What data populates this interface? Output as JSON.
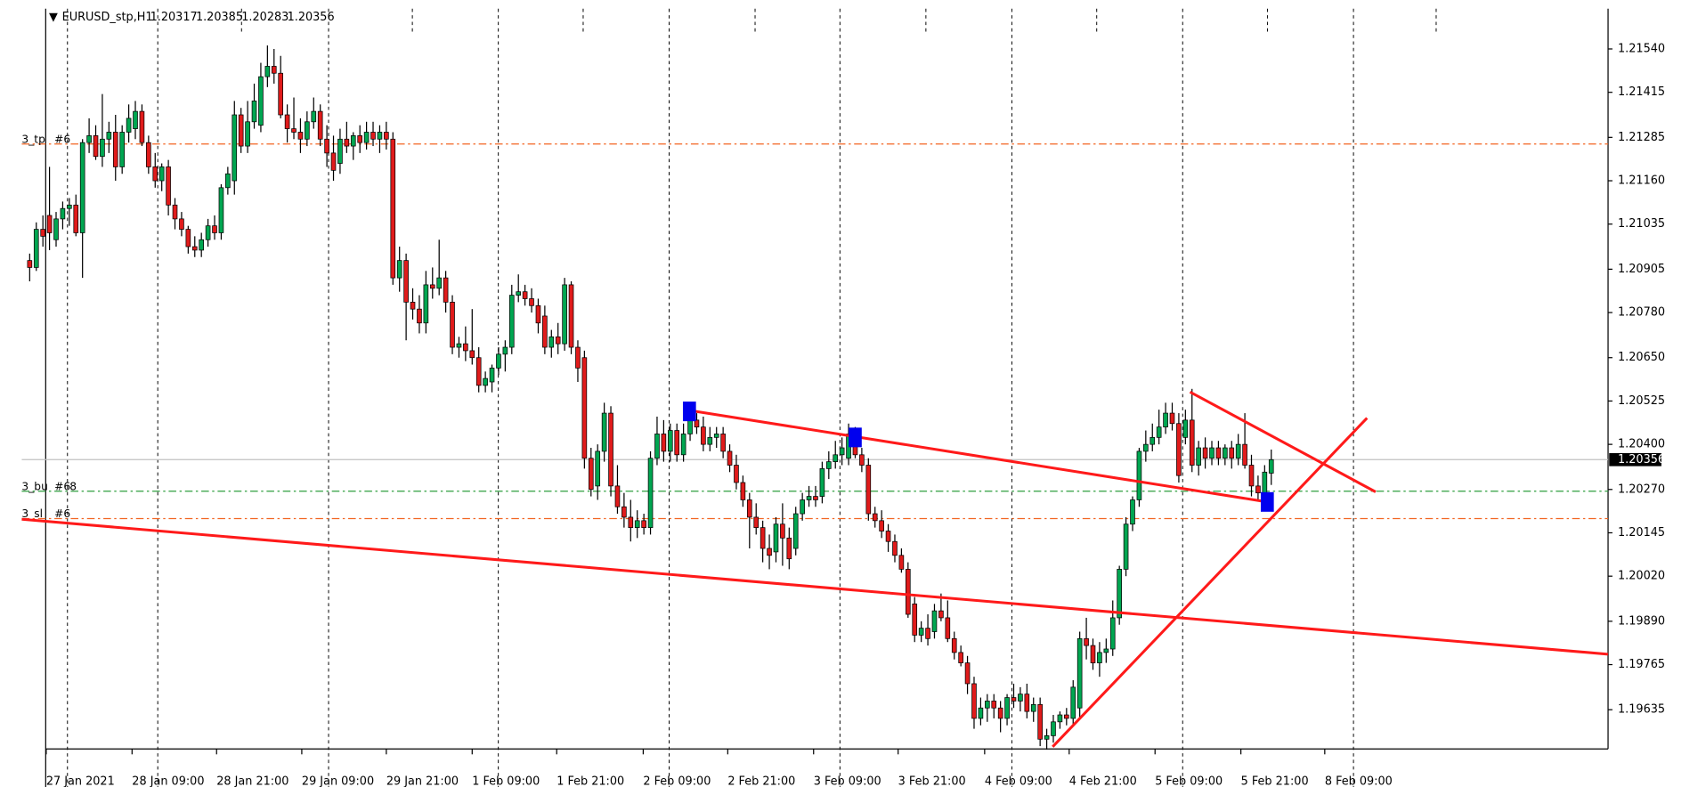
{
  "chart_data": {
    "type": "candlestick",
    "title": "EURUSD_stp,H1",
    "xlim": [
      -1.2,
      239
    ],
    "ylim": [
      1.19522,
      1.21656
    ],
    "yticks": [
      {
        "value": 1.2154,
        "label": "1.21540"
      },
      1.21415,
      1.21285,
      {
        "value": 1.2116,
        "label": "1.21160"
      },
      1.21035,
      1.20905,
      {
        "value": 1.2078,
        "label": "1.20780"
      },
      {
        "value": 1.2065,
        "label": "1.20650"
      },
      1.20525,
      {
        "value": 1.204,
        "label": "1.20400"
      },
      {
        "value": 1.2027,
        "label": "1.20270"
      },
      1.20145,
      {
        "value": 1.2002,
        "label": "1.20020"
      },
      {
        "value": 1.1989,
        "label": "1.19890"
      },
      1.19765,
      1.19635
    ],
    "xticks": [
      {
        "value": 2.5,
        "label": "27 Jan 2021"
      },
      {
        "value": 15.5,
        "label": "28 Jan 09:00"
      },
      {
        "value": 28.3,
        "label": "28 Jan 21:00"
      },
      {
        "value": 41.2,
        "label": "29 Jan 09:00"
      },
      {
        "value": 54,
        "label": "29 Jan 21:00"
      },
      {
        "value": 67,
        "label": "1 Feb 09:00"
      },
      {
        "value": 79.8,
        "label": "1 Feb 21:00"
      },
      {
        "value": 92.9,
        "label": "2 Feb 09:00"
      },
      {
        "value": 105.7,
        "label": "2 Feb 21:00"
      },
      {
        "value": 118.7,
        "label": "3 Feb 09:00"
      },
      {
        "value": 131.5,
        "label": "3 Feb 21:00"
      },
      {
        "value": 144.6,
        "label": "4 Feb 09:00"
      },
      {
        "value": 157.4,
        "label": "4 Feb 21:00"
      },
      {
        "value": 170.4,
        "label": "5 Feb 09:00"
      },
      {
        "value": 183.4,
        "label": "5 Feb 21:00"
      },
      {
        "value": 196.1,
        "label": "8 Feb 09:00"
      }
    ],
    "bull_color": "#00a651",
    "bear_color": "#e01b1b",
    "ohlc": [
      [
        1.2093,
        1.2095,
        1.2087,
        1.2091
      ],
      [
        1.2091,
        1.2104,
        1.209,
        1.2102
      ],
      [
        1.2102,
        1.2106,
        1.2097,
        1.21
      ],
      [
        1.2106,
        1.212,
        1.2096,
        1.2101
      ],
      [
        1.2099,
        1.2107,
        1.2097,
        1.2105
      ],
      [
        1.2105,
        1.211,
        1.2102,
        1.2108
      ],
      [
        1.2108,
        1.2111,
        1.2103,
        1.2109
      ],
      [
        1.2109,
        1.2112,
        1.21,
        1.2101
      ],
      [
        1.2101,
        1.2128,
        1.2088,
        1.2127
      ],
      [
        1.2127,
        1.2134,
        1.2124,
        1.2129
      ],
      [
        1.2129,
        1.2132,
        1.2122,
        1.2123
      ],
      [
        1.2123,
        1.2141,
        1.212,
        1.2128
      ],
      [
        1.2128,
        1.2133,
        1.2124,
        1.213
      ],
      [
        1.213,
        1.2135,
        1.2116,
        1.212
      ],
      [
        1.212,
        1.2132,
        1.2118,
        1.213
      ],
      [
        1.213,
        1.2138,
        1.2127,
        1.2134
      ],
      [
        1.2131,
        1.2139,
        1.2128,
        1.2136
      ],
      [
        1.2136,
        1.2138,
        1.2126,
        1.2127
      ],
      [
        1.2127,
        1.2129,
        1.2118,
        1.212
      ],
      [
        1.212,
        1.2124,
        1.2114,
        1.2116
      ],
      [
        1.2116,
        1.2121,
        1.2113,
        1.212
      ],
      [
        1.212,
        1.2122,
        1.2106,
        1.2109
      ],
      [
        1.2109,
        1.2111,
        1.2102,
        1.2105
      ],
      [
        1.2105,
        1.2107,
        1.21,
        1.2102
      ],
      [
        1.2102,
        1.2103,
        1.2095,
        1.2097
      ],
      [
        1.2097,
        1.21,
        1.2094,
        1.2096
      ],
      [
        1.2096,
        1.2101,
        1.2094,
        1.2099
      ],
      [
        1.2099,
        1.2105,
        1.2097,
        1.2103
      ],
      [
        1.2103,
        1.2106,
        1.2099,
        1.2101
      ],
      [
        1.2101,
        1.2115,
        1.2099,
        1.2114
      ],
      [
        1.2114,
        1.212,
        1.2112,
        1.2118
      ],
      [
        1.2116,
        1.2139,
        1.2112,
        1.2135
      ],
      [
        1.2135,
        1.2137,
        1.2124,
        1.2126
      ],
      [
        1.2126,
        1.2139,
        1.2124,
        1.2133
      ],
      [
        1.2133,
        1.2144,
        1.2131,
        1.2139
      ],
      [
        1.2132,
        1.215,
        1.213,
        1.2146
      ],
      [
        1.2146,
        1.2155,
        1.2143,
        1.2149
      ],
      [
        1.2149,
        1.2154,
        1.2144,
        1.2147
      ],
      [
        1.2147,
        1.2152,
        1.2134,
        1.2135
      ],
      [
        1.2135,
        1.2138,
        1.2127,
        1.2131
      ],
      [
        1.2131,
        1.214,
        1.2128,
        1.213
      ],
      [
        1.213,
        1.2134,
        1.2124,
        1.2128
      ],
      [
        1.2128,
        1.2136,
        1.2126,
        1.2133
      ],
      [
        1.2133,
        1.214,
        1.2131,
        1.2136
      ],
      [
        1.2136,
        1.2138,
        1.2126,
        1.2128
      ],
      [
        1.2128,
        1.2132,
        1.212,
        1.2124
      ],
      [
        1.2124,
        1.2129,
        1.2116,
        1.2119
      ],
      [
        1.2121,
        1.2131,
        1.2118,
        1.2128
      ],
      [
        1.2128,
        1.2133,
        1.2124,
        1.2126
      ],
      [
        1.2126,
        1.213,
        1.2122,
        1.2129
      ],
      [
        1.2129,
        1.2132,
        1.2124,
        1.2127
      ],
      [
        1.2127,
        1.2133,
        1.2125,
        1.213
      ],
      [
        1.213,
        1.2133,
        1.2126,
        1.2128
      ],
      [
        1.2128,
        1.2132,
        1.2124,
        1.213
      ],
      [
        1.213,
        1.2133,
        1.2125,
        1.2128
      ],
      [
        1.2128,
        1.213,
        1.2086,
        1.2088
      ],
      [
        1.2088,
        1.2097,
        1.2084,
        1.2093
      ],
      [
        1.2093,
        1.2095,
        1.207,
        1.2081
      ],
      [
        1.2081,
        1.2085,
        1.2076,
        1.2079
      ],
      [
        1.2079,
        1.2083,
        1.2072,
        1.2075
      ],
      [
        1.2075,
        1.209,
        1.2072,
        1.2086
      ],
      [
        1.2086,
        1.2091,
        1.2082,
        1.2085
      ],
      [
        1.2085,
        1.2099,
        1.2083,
        1.2088
      ],
      [
        1.2088,
        1.209,
        1.2078,
        1.2081
      ],
      [
        1.2081,
        1.2083,
        1.2066,
        1.2068
      ],
      [
        1.2068,
        1.2071,
        1.2065,
        1.2069
      ],
      [
        1.2069,
        1.2074,
        1.2064,
        1.2067
      ],
      [
        1.2067,
        1.2079,
        1.2063,
        1.2065
      ],
      [
        1.2065,
        1.2068,
        1.2055,
        1.2057
      ],
      [
        1.2057,
        1.2061,
        1.2055,
        1.2059
      ],
      [
        1.2058,
        1.2063,
        1.2055,
        1.2062
      ],
      [
        1.2062,
        1.2068,
        1.206,
        1.2066
      ],
      [
        1.2066,
        1.207,
        1.2061,
        1.2068
      ],
      [
        1.2068,
        1.2086,
        1.2066,
        1.2083
      ],
      [
        1.2083,
        1.2089,
        1.2081,
        1.2084
      ],
      [
        1.2084,
        1.2086,
        1.208,
        1.2082
      ],
      [
        1.2082,
        1.2085,
        1.2078,
        1.208
      ],
      [
        1.208,
        1.2082,
        1.2072,
        1.2075
      ],
      [
        1.2077,
        1.208,
        1.2066,
        1.2068
      ],
      [
        1.2068,
        1.2073,
        1.2065,
        1.2071
      ],
      [
        1.2071,
        1.2075,
        1.2066,
        1.2069
      ],
      [
        1.2069,
        1.2088,
        1.2067,
        1.2086
      ],
      [
        1.2086,
        1.2087,
        1.2066,
        1.2068
      ],
      [
        1.2068,
        1.207,
        1.2058,
        1.2062
      ],
      [
        1.2065,
        1.2067,
        1.2033,
        1.2036
      ],
      [
        1.2036,
        1.2039,
        1.2025,
        1.2027
      ],
      [
        1.2028,
        1.204,
        1.2024,
        1.2038
      ],
      [
        1.2038,
        1.2052,
        1.2035,
        1.2049
      ],
      [
        1.2049,
        1.2051,
        1.2025,
        1.2028
      ],
      [
        1.2028,
        1.2034,
        1.202,
        1.2022
      ],
      [
        1.2022,
        1.2026,
        1.2016,
        1.2019
      ],
      [
        1.2019,
        1.2024,
        1.2012,
        1.2016
      ],
      [
        1.2016,
        1.2021,
        1.2013,
        1.2018
      ],
      [
        1.2018,
        1.202,
        1.2014,
        1.2016
      ],
      [
        1.2016,
        1.2038,
        1.2014,
        1.2036
      ],
      [
        1.2036,
        1.2048,
        1.2034,
        1.2043
      ],
      [
        1.2043,
        1.2047,
        1.2035,
        1.2038
      ],
      [
        1.2038,
        1.2046,
        1.2035,
        1.2044
      ],
      [
        1.2044,
        1.2046,
        1.2035,
        1.2037
      ],
      [
        1.2037,
        1.2046,
        1.2035,
        1.2043
      ],
      [
        1.2043,
        1.205,
        1.2041,
        1.2047
      ],
      [
        1.2047,
        1.2049,
        1.2043,
        1.2045
      ],
      [
        1.2045,
        1.2048,
        1.2038,
        1.204
      ],
      [
        1.204,
        1.2045,
        1.2038,
        1.2042
      ],
      [
        1.2042,
        1.2045,
        1.2039,
        1.2043
      ],
      [
        1.2043,
        1.2045,
        1.2036,
        1.2038
      ],
      [
        1.2038,
        1.204,
        1.2032,
        1.2034
      ],
      [
        1.2034,
        1.2037,
        1.2027,
        1.2029
      ],
      [
        1.2029,
        1.2031,
        1.2022,
        1.2024
      ],
      [
        1.2024,
        1.2026,
        1.201,
        1.2019
      ],
      [
        1.2019,
        1.2023,
        1.2014,
        1.2016
      ],
      [
        1.2016,
        1.2018,
        1.2006,
        1.201
      ],
      [
        1.201,
        1.2014,
        1.2004,
        1.2008
      ],
      [
        1.2009,
        1.2019,
        1.2006,
        1.2017
      ],
      [
        1.2017,
        1.2023,
        1.2005,
        1.2013
      ],
      [
        1.2013,
        1.2016,
        1.2004,
        1.2007
      ],
      [
        1.201,
        1.2022,
        1.2008,
        1.202
      ],
      [
        1.202,
        1.2026,
        1.2018,
        1.2024
      ],
      [
        1.2024,
        1.2028,
        1.2022,
        1.2025
      ],
      [
        1.2025,
        1.2028,
        1.2022,
        1.2024
      ],
      [
        1.2025,
        1.2035,
        1.2023,
        1.2033
      ],
      [
        1.2033,
        1.2038,
        1.203,
        1.2035
      ],
      [
        1.2035,
        1.2041,
        1.2033,
        1.2037
      ],
      [
        1.2037,
        1.2042,
        1.2034,
        1.2039
      ],
      [
        1.2036,
        1.2046,
        1.2034,
        1.2043
      ],
      [
        1.2043,
        1.2045,
        1.2036,
        1.2037
      ],
      [
        1.2037,
        1.2039,
        1.2032,
        1.2034
      ],
      [
        1.2034,
        1.2036,
        1.2018,
        1.202
      ],
      [
        1.202,
        1.2022,
        1.2016,
        1.2018
      ],
      [
        1.2018,
        1.2021,
        1.2013,
        1.2015
      ],
      [
        1.2015,
        1.2017,
        1.2009,
        1.2012
      ],
      [
        1.2012,
        1.2014,
        1.2006,
        1.2008
      ],
      [
        1.2008,
        1.201,
        1.2003,
        1.2004
      ],
      [
        1.2004,
        1.2006,
        1.199,
        1.1991
      ],
      [
        1.1994,
        1.1996,
        1.1983,
        1.1985
      ],
      [
        1.1985,
        1.1989,
        1.1983,
        1.1987
      ],
      [
        1.1987,
        1.1991,
        1.1982,
        1.1984
      ],
      [
        1.1986,
        1.1994,
        1.1984,
        1.1992
      ],
      [
        1.1992,
        1.1997,
        1.1989,
        1.199
      ],
      [
        1.199,
        1.1995,
        1.1983,
        1.1984
      ],
      [
        1.1984,
        1.1986,
        1.1978,
        1.198
      ],
      [
        1.198,
        1.1982,
        1.1976,
        1.1977
      ],
      [
        1.1977,
        1.1979,
        1.1968,
        1.1971
      ],
      [
        1.1971,
        1.1973,
        1.1958,
        1.1961
      ],
      [
        1.1961,
        1.1967,
        1.1959,
        1.1964
      ],
      [
        1.1964,
        1.1968,
        1.196,
        1.1966
      ],
      [
        1.1966,
        1.1968,
        1.1961,
        1.1964
      ],
      [
        1.1964,
        1.1966,
        1.1957,
        1.1961
      ],
      [
        1.1961,
        1.1968,
        1.1959,
        1.1967
      ],
      [
        1.1967,
        1.1971,
        1.1964,
        1.1966
      ],
      [
        1.1966,
        1.197,
        1.1963,
        1.1968
      ],
      [
        1.1968,
        1.1971,
        1.1961,
        1.1963
      ],
      [
        1.1963,
        1.1967,
        1.196,
        1.1965
      ],
      [
        1.1965,
        1.1967,
        1.1953,
        1.1955
      ],
      [
        1.1955,
        1.1958,
        1.1952,
        1.1956
      ],
      [
        1.1956,
        1.1962,
        1.1954,
        1.196
      ],
      [
        1.196,
        1.1963,
        1.1958,
        1.1962
      ],
      [
        1.1962,
        1.1964,
        1.1959,
        1.1961
      ],
      [
        1.1961,
        1.1972,
        1.1959,
        1.197
      ],
      [
        1.1964,
        1.1986,
        1.1961,
        1.1984
      ],
      [
        1.1984,
        1.199,
        1.1978,
        1.1982
      ],
      [
        1.1982,
        1.1984,
        1.1975,
        1.1977
      ],
      [
        1.1977,
        1.1983,
        1.1973,
        1.198
      ],
      [
        1.198,
        1.1984,
        1.1977,
        1.1981
      ],
      [
        1.1981,
        1.1995,
        1.1979,
        1.199
      ],
      [
        1.199,
        1.2005,
        1.1988,
        1.2004
      ],
      [
        1.2004,
        1.2019,
        1.2002,
        1.2017
      ],
      [
        1.2017,
        1.2025,
        1.2015,
        1.2024
      ],
      [
        1.2024,
        1.2039,
        1.2022,
        1.2038
      ],
      [
        1.2038,
        1.2044,
        1.2035,
        1.204
      ],
      [
        1.204,
        1.2046,
        1.2038,
        1.2042
      ],
      [
        1.2042,
        1.205,
        1.204,
        1.2045
      ],
      [
        1.2045,
        1.2052,
        1.2043,
        1.2049
      ],
      [
        1.2049,
        1.2052,
        1.2044,
        1.2046
      ],
      [
        1.2046,
        1.2049,
        1.2029,
        1.2031
      ],
      [
        1.2042,
        1.205,
        1.204,
        1.2047
      ],
      [
        1.2047,
        1.2056,
        1.2032,
        1.2034
      ],
      [
        1.2034,
        1.2041,
        1.2031,
        1.2039
      ],
      [
        1.2039,
        1.2042,
        1.2033,
        1.2036
      ],
      [
        1.2036,
        1.2041,
        1.2034,
        1.2039
      ],
      [
        1.2039,
        1.2041,
        1.2034,
        1.2036
      ],
      [
        1.2036,
        1.204,
        1.2034,
        1.2039
      ],
      [
        1.2039,
        1.2041,
        1.2033,
        1.2036
      ],
      [
        1.2036,
        1.2043,
        1.2034,
        1.204
      ],
      [
        1.204,
        1.2049,
        1.2033,
        1.2034
      ],
      [
        1.2034,
        1.2037,
        1.2025,
        1.2028
      ],
      [
        1.2028,
        1.2031,
        1.2024,
        1.2026
      ],
      [
        1.2026,
        1.2034,
        1.2024,
        1.2032
      ],
      [
        1.20317,
        1.20385,
        1.20283,
        1.20356
      ]
    ],
    "levels": [
      {
        "name": "3_tp",
        "tag": "#6",
        "price": 1.21266,
        "color": "#f26522"
      },
      {
        "name": "3_bu",
        "tag": "#6",
        "extra": "8",
        "price": 1.20265,
        "color": "#2e9e3e"
      },
      {
        "name": "3_sl",
        "tag": "#6",
        "price": 1.20186,
        "color": "#f26522"
      }
    ],
    "trendline_color": "#ff1a1a",
    "trendlines": [
      {
        "points": [
          [
            -1.2,
            1.20184
          ],
          [
            239,
            1.19795
          ]
        ]
      },
      {
        "points": [
          [
            99.9,
            1.20498
          ],
          [
            187.4,
            1.20234
          ]
        ]
      },
      {
        "points": [
          [
            154.9,
            1.19528
          ],
          [
            202.5,
            1.20476
          ]
        ]
      },
      {
        "points": [
          [
            175.7,
            1.20551
          ],
          [
            203.8,
            1.20263
          ]
        ]
      }
    ],
    "marker_color": "#0000ee",
    "markers": [
      [
        99.9,
        1.20495
      ],
      [
        125,
        1.2042
      ],
      [
        187.4,
        1.20234
      ]
    ]
  }
}
